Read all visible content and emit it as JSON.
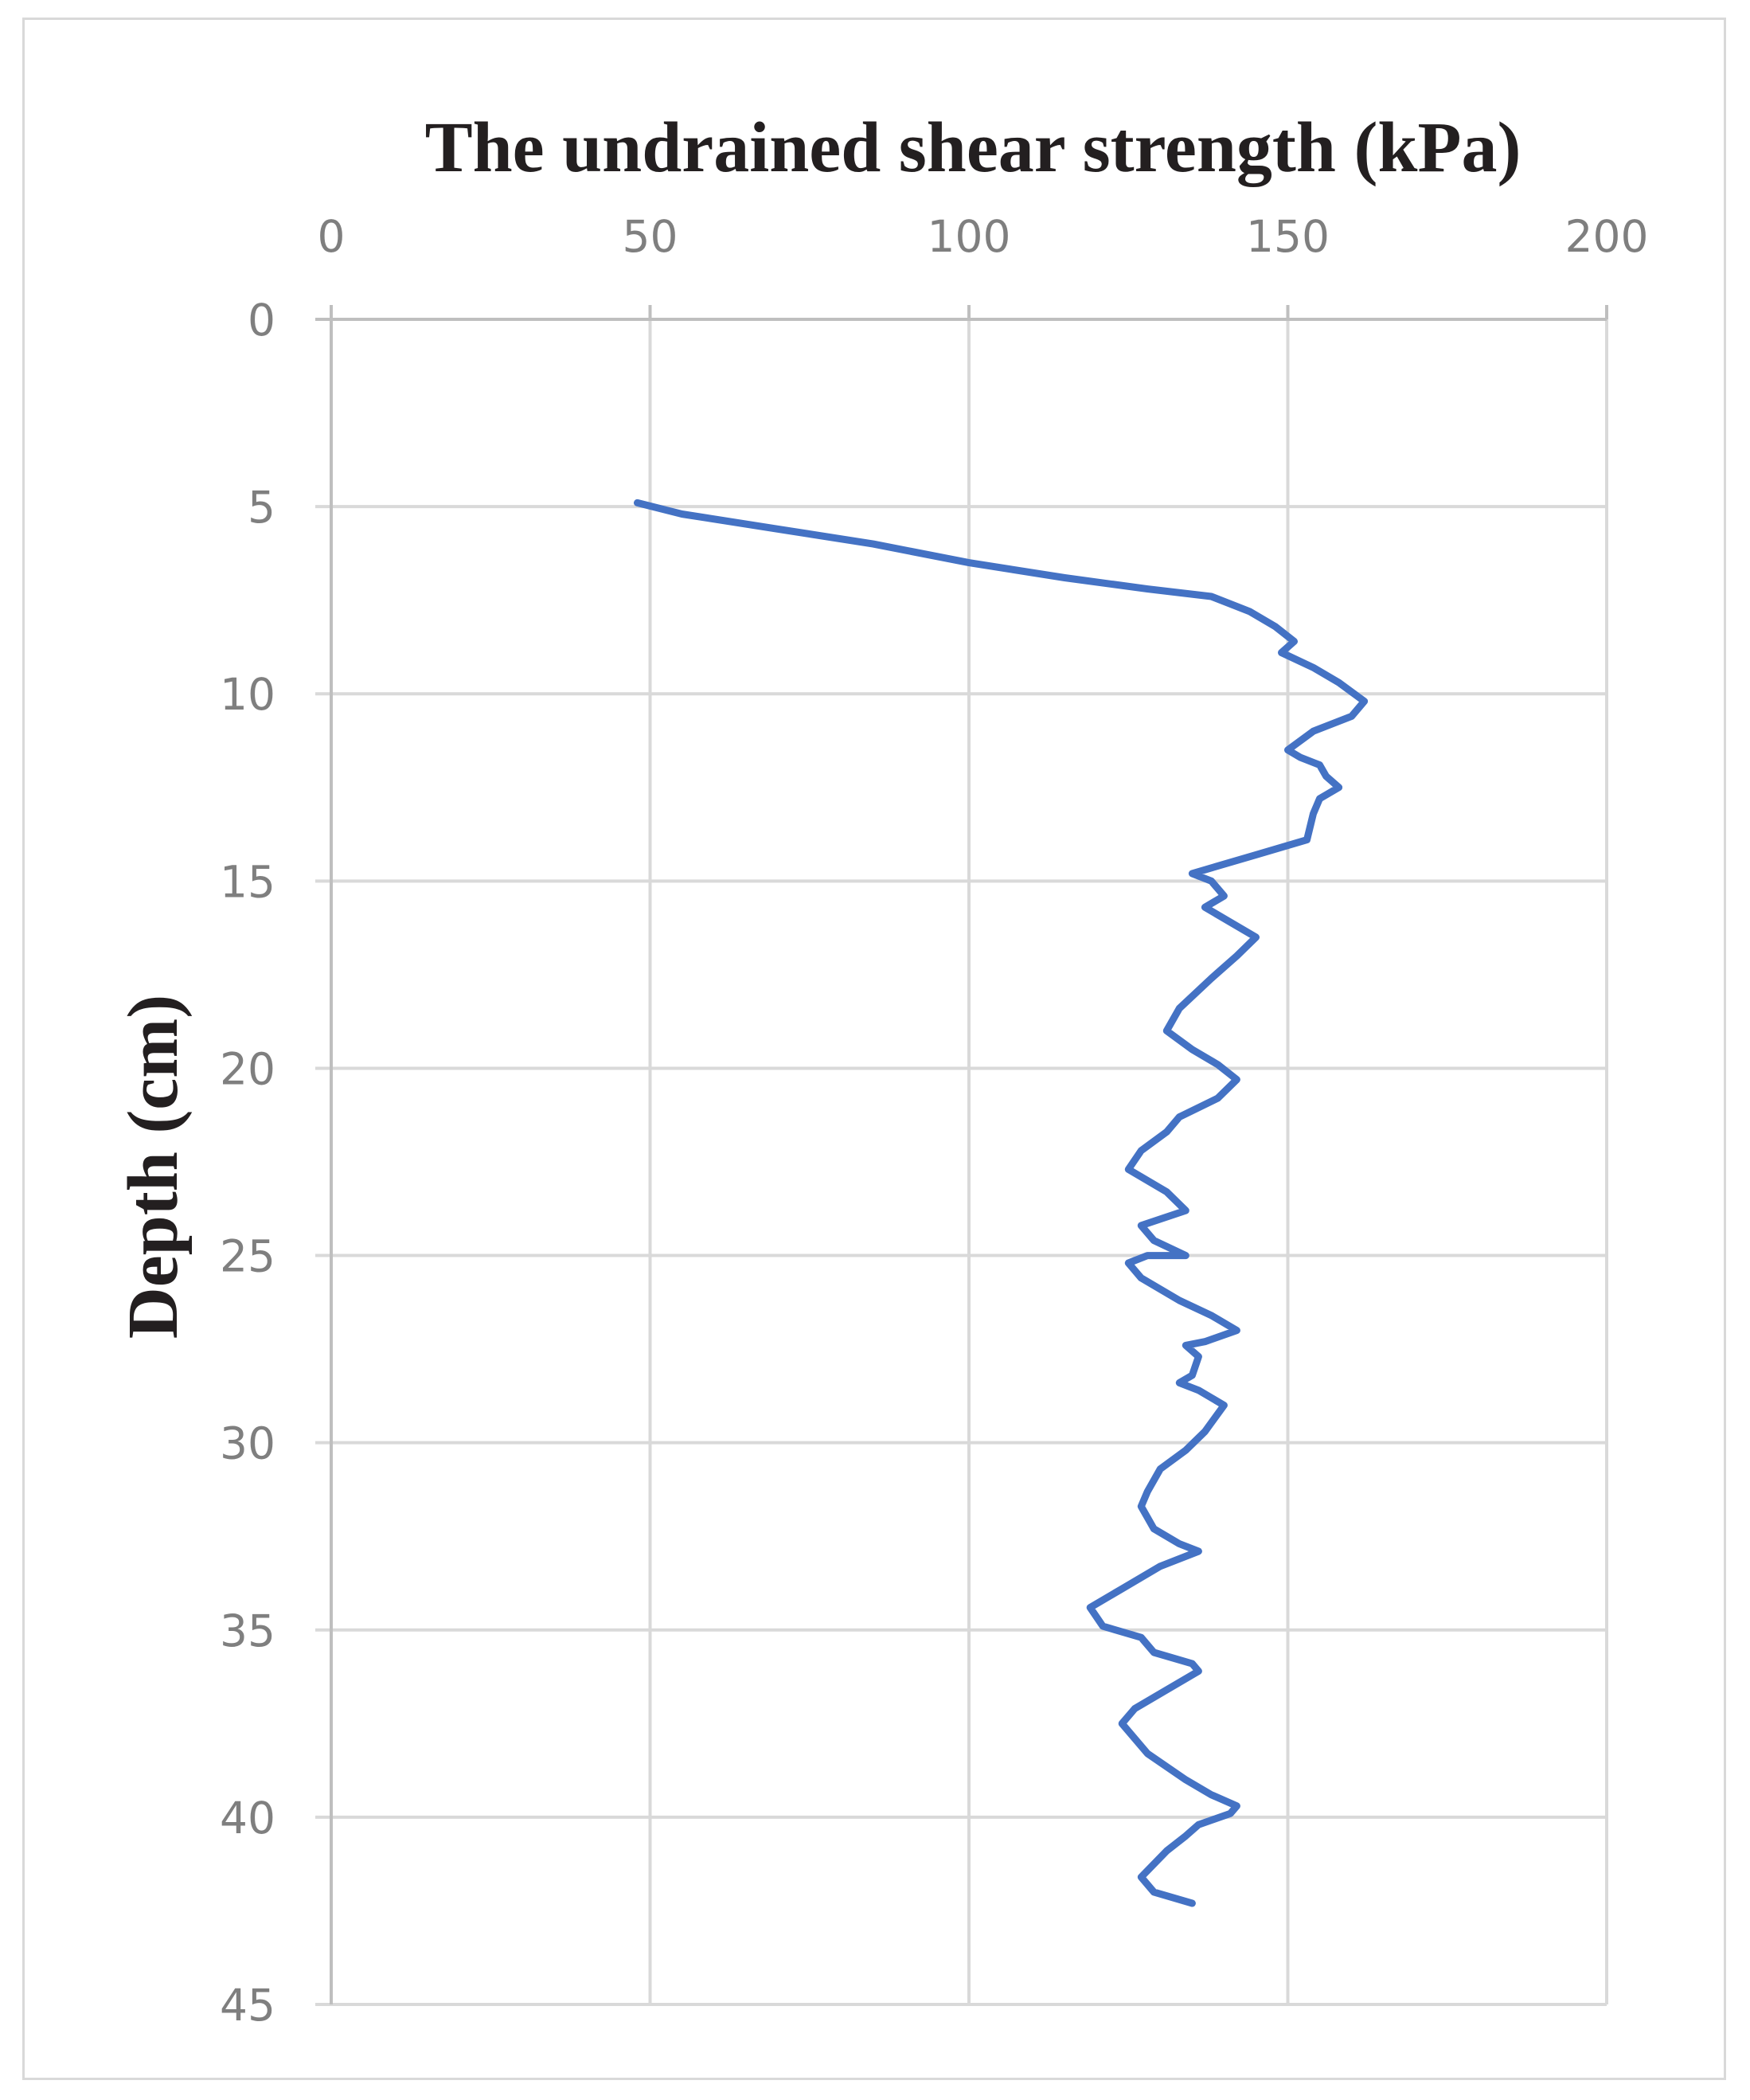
{
  "chart_data": {
    "type": "line",
    "title": "The undrained shear strength (kPa)",
    "xlabel": "The undrained shear strength (kPa)",
    "ylabel": "Depth (cm)",
    "xlim": [
      0,
      200
    ],
    "ylim": [
      0,
      45
    ],
    "y_inverted": true,
    "x_axis_position": "top",
    "x_ticks": [
      0,
      50,
      100,
      150,
      200
    ],
    "y_ticks": [
      0,
      5,
      10,
      15,
      20,
      25,
      30,
      35,
      40,
      45
    ],
    "x_tick_labels": [
      "0",
      "50",
      "100",
      "150",
      "200"
    ],
    "y_tick_labels": [
      "0",
      "5",
      "10",
      "15",
      "20",
      "25",
      "30",
      "35",
      "40",
      "45"
    ],
    "grid": true,
    "series": [
      {
        "color": "#4472c4",
        "points": [
          [
            48,
            4.9
          ],
          [
            55,
            5.2
          ],
          [
            70,
            5.6
          ],
          [
            85,
            6.0
          ],
          [
            100,
            6.5
          ],
          [
            115,
            6.9
          ],
          [
            128,
            7.2
          ],
          [
            138,
            7.4
          ],
          [
            144,
            7.8
          ],
          [
            148,
            8.2
          ],
          [
            151,
            8.6
          ],
          [
            149,
            8.9
          ],
          [
            154,
            9.3
          ],
          [
            158,
            9.7
          ],
          [
            162,
            10.2
          ],
          [
            160,
            10.6
          ],
          [
            154,
            11.0
          ],
          [
            150,
            11.5
          ],
          [
            152,
            11.7
          ],
          [
            155,
            11.9
          ],
          [
            156,
            12.2
          ],
          [
            158,
            12.5
          ],
          [
            155,
            12.8
          ],
          [
            154,
            13.2
          ],
          [
            153,
            13.9
          ],
          [
            145,
            14.3
          ],
          [
            135,
            14.8
          ],
          [
            138,
            15.0
          ],
          [
            140,
            15.4
          ],
          [
            137,
            15.7
          ],
          [
            140,
            16.0
          ],
          [
            145,
            16.5
          ],
          [
            142,
            17.0
          ],
          [
            138,
            17.6
          ],
          [
            133,
            18.4
          ],
          [
            131,
            19.0
          ],
          [
            135,
            19.5
          ],
          [
            139,
            19.9
          ],
          [
            142,
            20.3
          ],
          [
            139,
            20.8
          ],
          [
            133,
            21.3
          ],
          [
            131,
            21.7
          ],
          [
            127,
            22.2
          ],
          [
            125,
            22.7
          ],
          [
            131,
            23.3
          ],
          [
            134,
            23.8
          ],
          [
            127,
            24.2
          ],
          [
            129,
            24.6
          ],
          [
            134,
            25.0
          ],
          [
            128,
            25.0
          ],
          [
            125,
            25.2
          ],
          [
            127,
            25.6
          ],
          [
            133,
            26.2
          ],
          [
            138,
            26.6
          ],
          [
            142,
            27.0
          ],
          [
            137,
            27.3
          ],
          [
            134,
            27.4
          ],
          [
            136,
            27.7
          ],
          [
            135,
            28.2
          ],
          [
            133,
            28.4
          ],
          [
            136,
            28.6
          ],
          [
            140,
            29.0
          ],
          [
            137,
            29.7
          ],
          [
            134,
            30.2
          ],
          [
            130,
            30.7
          ],
          [
            128,
            31.3
          ],
          [
            127,
            31.7
          ],
          [
            129,
            32.3
          ],
          [
            133,
            32.7
          ],
          [
            136,
            32.9
          ],
          [
            130,
            33.3
          ],
          [
            124,
            33.9
          ],
          [
            119,
            34.4
          ],
          [
            121,
            34.9
          ],
          [
            127,
            35.2
          ],
          [
            129,
            35.6
          ],
          [
            135,
            35.9
          ],
          [
            136,
            36.1
          ],
          [
            131,
            36.6
          ],
          [
            126,
            37.1
          ],
          [
            124,
            37.5
          ],
          [
            128,
            38.3
          ],
          [
            134,
            39.0
          ],
          [
            138,
            39.4
          ],
          [
            142,
            39.7
          ],
          [
            141,
            39.9
          ],
          [
            136,
            40.2
          ],
          [
            134,
            40.5
          ],
          [
            131,
            40.9
          ],
          [
            127,
            41.6
          ],
          [
            129,
            42.0
          ],
          [
            135,
            42.3
          ]
        ]
      }
    ]
  }
}
